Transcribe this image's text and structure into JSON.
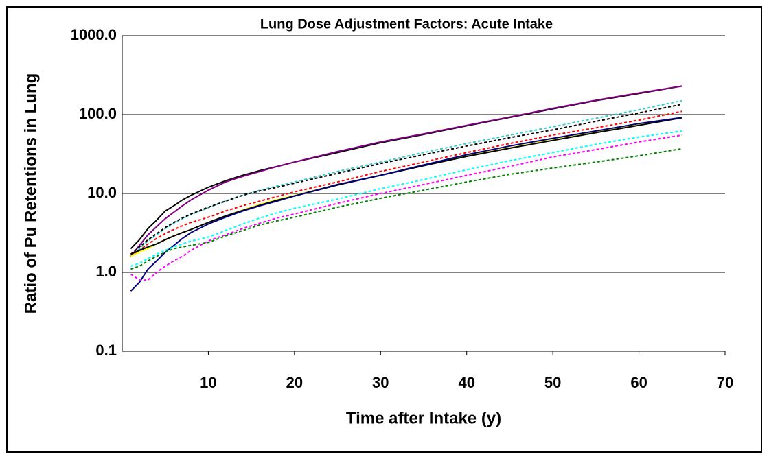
{
  "chart_data": {
    "type": "line",
    "title": "Lung Dose Adjustment Factors: Acute Intake",
    "x_label": "Time after Intake (y)",
    "y_label": "Ratio of Pu Retentions in Lung",
    "y_scale": "log",
    "grid": true,
    "xlim": [
      0,
      70
    ],
    "xticks": [
      10,
      20,
      30,
      40,
      50,
      60,
      70
    ],
    "ylim": [
      0.1,
      1000
    ],
    "yticks": [
      0.1,
      {
        "value": 1,
        "label": "1.0"
      },
      {
        "value": 10,
        "label": "10.0"
      },
      {
        "value": 100,
        "label": "100.0"
      },
      {
        "value": 1000,
        "label": "1000.0"
      }
    ],
    "x": [
      1,
      2,
      3,
      4,
      5,
      6,
      7,
      8,
      10,
      12,
      14,
      16,
      18,
      20,
      25,
      30,
      35,
      40,
      45,
      50,
      55,
      60,
      65
    ],
    "series": [
      {
        "color": "#000000",
        "dashed": false,
        "values": [
          2.0,
          2.6,
          3.6,
          4.6,
          6.0,
          7.0,
          8.3,
          9.5,
          12,
          14.5,
          17,
          19.5,
          22,
          25,
          33,
          44,
          56,
          72,
          92,
          118,
          150,
          185,
          230
        ]
      },
      {
        "color": "#800080",
        "dashed": false,
        "values": [
          1.6,
          2.2,
          3.0,
          3.8,
          4.8,
          5.8,
          7.0,
          8.3,
          11,
          14,
          16.5,
          19,
          22,
          25,
          34,
          45,
          57,
          73,
          93,
          120,
          152,
          188,
          230
        ]
      },
      {
        "color": "#33cccc",
        "dashed": true,
        "values": [
          1.6,
          2.0,
          2.5,
          3.0,
          3.6,
          4.2,
          4.8,
          5.4,
          6.6,
          8,
          9.5,
          11,
          12.5,
          14,
          19,
          25,
          33,
          43,
          55,
          70,
          90,
          115,
          150
        ]
      },
      {
        "color": "#000000",
        "dashed": true,
        "values": [
          1.7,
          2.1,
          2.6,
          3.1,
          3.7,
          4.3,
          4.9,
          5.5,
          6.7,
          8,
          9.5,
          10.8,
          12,
          13.5,
          18,
          24,
          31,
          40,
          51,
          64,
          82,
          105,
          135
        ]
      },
      {
        "color": "#ff0000",
        "dashed": true,
        "values": [
          1.6,
          1.9,
          2.3,
          2.7,
          3.1,
          3.5,
          3.9,
          4.3,
          5.0,
          6.0,
          7.0,
          8.0,
          9.2,
          10.5,
          14,
          19,
          25,
          33,
          43,
          55,
          68,
          85,
          110
        ]
      },
      {
        "color": "#ffff00",
        "dashed": false,
        "values": [
          1.6,
          1.8,
          2.0,
          2.3,
          2.6,
          2.9,
          3.2,
          3.5,
          4.3,
          5.2,
          6.2,
          7.3,
          8.4,
          9.5,
          13,
          17,
          23,
          30,
          38,
          48,
          60,
          75,
          92
        ]
      },
      {
        "color": "#000000",
        "dashed": false,
        "values": [
          1.7,
          1.9,
          2.1,
          2.3,
          2.6,
          2.9,
          3.2,
          3.5,
          4.3,
          5.2,
          6.1,
          7.1,
          8.2,
          9.3,
          12.8,
          17,
          22.5,
          29.5,
          37.5,
          47,
          59,
          73,
          91
        ]
      },
      {
        "color": "#000080",
        "dashed": false,
        "values": [
          0.58,
          0.75,
          1.1,
          1.4,
          1.8,
          2.2,
          2.7,
          3.2,
          4.1,
          5.0,
          6.0,
          7.0,
          8.0,
          9.3,
          13,
          17,
          23,
          31,
          40,
          50,
          62,
          77,
          92
        ]
      },
      {
        "color": "#00ffff",
        "dashed": true,
        "values": [
          1.2,
          1.3,
          1.5,
          1.7,
          1.9,
          2.1,
          2.3,
          2.5,
          2.8,
          3.4,
          4.1,
          4.9,
          5.7,
          6.5,
          8.5,
          11.5,
          15,
          20,
          26,
          33,
          42,
          52,
          62
        ]
      },
      {
        "color": "#ff00ff",
        "dashed": true,
        "values": [
          0.95,
          0.8,
          0.8,
          1.0,
          1.2,
          1.4,
          1.6,
          1.9,
          2.5,
          3.0,
          3.6,
          4.2,
          4.9,
          5.5,
          7.5,
          10,
          13,
          17,
          22,
          29,
          36,
          45,
          55
        ]
      },
      {
        "color": "#008000",
        "dashed": true,
        "values": [
          1.1,
          1.2,
          1.4,
          1.6,
          1.8,
          2.0,
          2.1,
          2.2,
          2.4,
          2.9,
          3.4,
          4.0,
          4.5,
          5.0,
          6.7,
          8.7,
          11,
          14,
          17.5,
          21,
          25,
          30,
          37
        ]
      }
    ]
  }
}
